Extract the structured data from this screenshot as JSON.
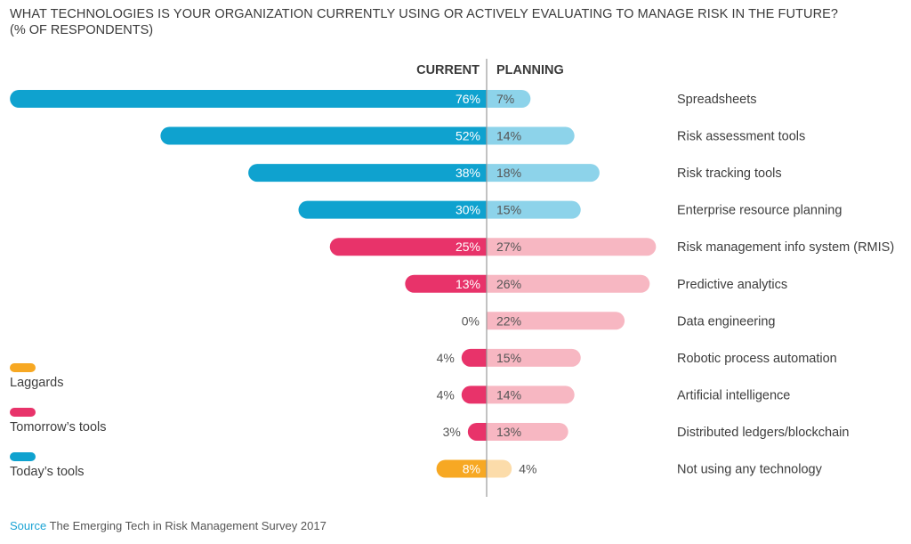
{
  "title": "WHAT TECHNOLOGIES IS YOUR ORGANIZATION CURRENTLY USING OR ACTIVELY EVALUATING TO MANAGE RISK IN THE FUTURE?",
  "subtitle": "(% OF RESPONDENTS)",
  "source": {
    "label": "Source",
    "text": "The Emerging Tech in Risk Management Survey 2017"
  },
  "legend": [
    {
      "label": "Laggards",
      "color": "#f7a823"
    },
    {
      "label": "Tomorrow’s tools",
      "color": "#e8336a"
    },
    {
      "label": "Today’s tools",
      "color": "#0fa2cf"
    }
  ],
  "chart_data": {
    "type": "bar",
    "orientation": "horizontal-diverging",
    "columns": [
      "CURRENT",
      "PLANNING"
    ],
    "categories": [
      "Spreadsheets",
      "Risk assessment tools",
      "Risk tracking tools",
      "Enterprise resource planning",
      "Risk management info system (RMIS)",
      "Predictive analytics",
      "Data engineering",
      "Robotic process automation",
      "Artificial intelligence",
      "Distributed ledgers/blockchain",
      "Not using any technology"
    ],
    "groups": [
      "Today’s tools",
      "Today’s tools",
      "Today’s tools",
      "Today’s tools",
      "Tomorrow’s tools",
      "Tomorrow’s tools",
      "Tomorrow’s tools",
      "Tomorrow’s tools",
      "Tomorrow’s tools",
      "Tomorrow’s tools",
      "Laggards"
    ],
    "series": [
      {
        "name": "CURRENT",
        "values": [
          76,
          52,
          38,
          30,
          25,
          13,
          0,
          4,
          4,
          3,
          8
        ]
      },
      {
        "name": "PLANNING",
        "values": [
          7,
          14,
          18,
          15,
          27,
          26,
          22,
          15,
          14,
          13,
          4
        ]
      }
    ],
    "value_labels": {
      "current": [
        "76%",
        "52%",
        "38%",
        "30%",
        "25%",
        "13%",
        "0%",
        "4%",
        "4%",
        "3%",
        "8%"
      ],
      "planning": [
        "7%",
        "14%",
        "18%",
        "15%",
        "27%",
        "26%",
        "22%",
        "15%",
        "14%",
        "13%",
        "4%"
      ]
    },
    "colors": {
      "Today’s tools": {
        "current": "#0fa2cf",
        "planning": "#8dd3ea"
      },
      "Tomorrow’s tools": {
        "current": "#e8336a",
        "planning": "#f7b7c2"
      },
      "Laggards": {
        "current": "#f7a823",
        "planning": "#fcdcaa"
      }
    },
    "axis_line_color": "#9a9a9a"
  }
}
